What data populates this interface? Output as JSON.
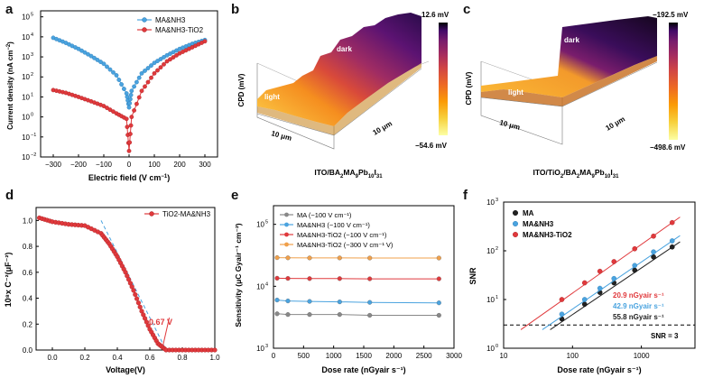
{
  "figure": {
    "panels": {
      "a": {
        "label": "a",
        "ylabel_main": "Current density (nA cm",
        "ylabel_sup": "−2",
        "ylabel_end": ")",
        "xlabel_main": "Electric field (V cm",
        "xlabel_sup": "−1",
        "xlabel_end": ")",
        "legend": [
          "MA&NH3",
          "MA&NH3-TiO2"
        ],
        "xticks": [
          "−300",
          "−200",
          "−100",
          "0",
          "100",
          "200",
          "300"
        ],
        "yticks": [
          "10",
          "10",
          "10",
          "10",
          "10",
          "10",
          "10",
          "10"
        ],
        "ytick_exp": [
          "5",
          "4",
          "3",
          "2",
          "1",
          "0",
          "−1",
          "−2"
        ]
      },
      "b": {
        "label": "b",
        "zlabel": "CPD (mV)",
        "top_value": "12.6 mV",
        "bottom_value": "−54.6 mV",
        "dark": "dark",
        "light": "light",
        "scale1": "10 μm",
        "scale2": "10 μm",
        "caption": "ITO/BA2MA9Pb10I31"
      },
      "c": {
        "label": "c",
        "zlabel": "CPD (mV)",
        "top_value": "−192.5 mV",
        "bottom_value": "−498.6 mV",
        "dark": "dark",
        "light": "light",
        "scale1": "10 μm",
        "scale2": "10 μm",
        "caption": "ITO/TiO2/BA2MA9Pb10I31"
      },
      "d": {
        "label": "d",
        "ylabel": "10⁸x C⁻²(μF⁻²)",
        "xlabel": "Voltage(V)",
        "legend": "TiO2-MA&NH3",
        "annotation": "0.67 V",
        "xticks": [
          "0.0",
          "0.2",
          "0.4",
          "0.6",
          "0.8",
          "1.0"
        ],
        "yticks": [
          "0.0",
          "0.2",
          "0.4",
          "0.6",
          "0.8",
          "1.0"
        ]
      },
      "e": {
        "label": "e",
        "ylabel": "Sensitivity (μC Gyair⁻¹ cm⁻²)",
        "xlabel": "Dose rate (nGyair s⁻¹)",
        "legend": [
          "MA (−100 V cm⁻¹)",
          "MA&NH3 (−100 V cm⁻¹)",
          "MA&NH3-TiO2 (−100 V cm⁻¹)",
          "MA&NH3-TiO2 (−300 V cm⁻¹ V)"
        ],
        "xticks": [
          "0",
          "500",
          "1000",
          "1500",
          "2000",
          "2500",
          "3000"
        ],
        "ytick_exp": [
          "5",
          "4",
          "3"
        ]
      },
      "f": {
        "label": "f",
        "ylabel": "SNR",
        "xlabel": "Dose rate (nGyair s⁻¹)",
        "legend": [
          "MA",
          "MA&NH3",
          "MA&NH3-TiO2"
        ],
        "annotations": [
          "20.9 nGyair s⁻¹",
          "42.9 nGyair s⁻¹",
          "55.8 nGyair s⁻¹",
          "SNR = 3"
        ],
        "xticks": [
          "10",
          "100",
          "1000"
        ],
        "ytick_exp": [
          "3",
          "2",
          "1",
          "0"
        ]
      }
    },
    "colors": {
      "blue": "#4aa3df",
      "red": "#e0393c",
      "gray": "#888888",
      "orange": "#f0a04b",
      "black": "#222222"
    }
  },
  "chart_data": [
    {
      "type": "line",
      "title": "",
      "xlabel": "Electric field (V cm−1)",
      "ylabel": "Current density (nA cm−2)",
      "yscale": "log",
      "xlim": [
        -350,
        350
      ],
      "ylim": [
        0.01,
        200000
      ],
      "series": [
        {
          "name": "MA&NH3",
          "x": [
            -300,
            -250,
            -200,
            -150,
            -100,
            -50,
            -10,
            0,
            10,
            50,
            100,
            150,
            200,
            250,
            300
          ],
          "y": [
            9000,
            5000,
            2500,
            1100,
            450,
            120,
            15,
            3,
            20,
            150,
            500,
            1200,
            2500,
            4500,
            7000
          ]
        },
        {
          "name": "MA&NH3-TiO2",
          "x": [
            -300,
            -250,
            -200,
            -150,
            -100,
            -50,
            -10,
            0,
            10,
            50,
            100,
            150,
            200,
            250,
            300
          ],
          "y": [
            22,
            16,
            10,
            6,
            3.5,
            1.5,
            0.8,
            0.02,
            1,
            20,
            150,
            600,
            1500,
            3000,
            6000
          ]
        }
      ]
    },
    {
      "type": "scatter",
      "xlabel": "Voltage(V)",
      "ylabel": "10⁸x C⁻²(μF⁻²)",
      "xlim": [
        -0.1,
        1.0
      ],
      "ylim": [
        0,
        1.1
      ],
      "series": [
        {
          "name": "TiO2-MA&NH3",
          "x": [
            -0.08,
            0.0,
            0.1,
            0.2,
            0.3,
            0.35,
            0.4,
            0.45,
            0.5,
            0.55,
            0.6,
            0.65,
            0.7,
            0.8,
            0.9,
            1.0
          ],
          "y": [
            1.02,
            0.99,
            0.97,
            0.96,
            0.9,
            0.82,
            0.72,
            0.6,
            0.46,
            0.3,
            0.16,
            0.05,
            0.0,
            0.0,
            0.0,
            0.0
          ]
        }
      ]
    },
    {
      "type": "line",
      "xlabel": "Dose rate (nGyair s⁻¹)",
      "ylabel": "Sensitivity (μC Gyair⁻¹ cm⁻²)",
      "yscale": "log",
      "xlim": [
        0,
        3000
      ],
      "ylim": [
        1000,
        200000
      ],
      "categories": [
        60,
        240,
        600,
        1100,
        1600,
        2750
      ],
      "series": [
        {
          "name": "MA (−100 V cm⁻¹)",
          "values": [
            3600,
            3500,
            3500,
            3500,
            3400,
            3400
          ]
        },
        {
          "name": "MA&NH3 (−100 V cm⁻¹)",
          "values": [
            6000,
            5800,
            5700,
            5600,
            5500,
            5400
          ]
        },
        {
          "name": "MA&NH3-TiO2 (−100 V cm⁻¹)",
          "values": [
            13500,
            13400,
            13300,
            13300,
            13200,
            13200
          ]
        },
        {
          "name": "MA&NH3-TiO2 (−300 V cm⁻¹ V)",
          "values": [
            29000,
            28800,
            28700,
            28700,
            28600,
            28600
          ]
        }
      ]
    },
    {
      "type": "scatter",
      "xlabel": "Dose rate (nGyair s⁻¹)",
      "ylabel": "SNR",
      "xscale": "log",
      "yscale": "log",
      "xlim": [
        10,
        6000
      ],
      "ylim": [
        1,
        1000
      ],
      "series": [
        {
          "name": "MA",
          "x": [
            70,
            150,
            250,
            400,
            800,
            1500,
            2800
          ],
          "y": [
            4,
            8,
            14,
            22,
            40,
            75,
            120
          ]
        },
        {
          "name": "MA&NH3",
          "x": [
            70,
            150,
            250,
            400,
            800,
            1500,
            2800
          ],
          "y": [
            5,
            10,
            17,
            27,
            50,
            95,
            160
          ]
        },
        {
          "name": "MA&NH3-TiO2",
          "x": [
            70,
            150,
            250,
            400,
            800,
            1500,
            2800
          ],
          "y": [
            10,
            22,
            38,
            60,
            110,
            200,
            380
          ]
        }
      ]
    }
  ]
}
